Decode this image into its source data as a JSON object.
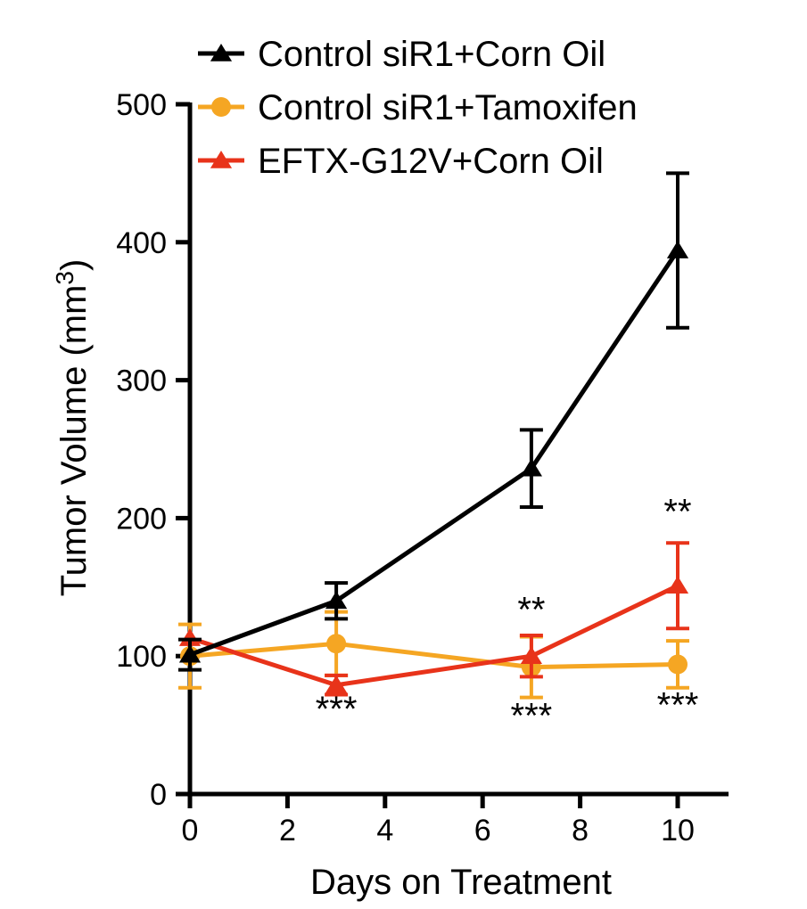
{
  "chart_data": {
    "type": "line",
    "title": "",
    "xlabel": "Days on Treatment",
    "ylabel": "Tumor Volume (mm",
    "ylabel_sup": "3",
    "ylabel_close": ")",
    "xlim": [
      0,
      11
    ],
    "ylim": [
      0,
      500
    ],
    "x_ticks": [
      0,
      2,
      4,
      6,
      8,
      10
    ],
    "y_ticks": [
      0,
      100,
      200,
      300,
      400,
      500
    ],
    "grid": false,
    "legend": "top",
    "series": [
      {
        "name": "Control siR1+Corn Oil",
        "color": "#000000",
        "marker": "triangle",
        "points": [
          {
            "x": 0,
            "y": 101,
            "err": 11
          },
          {
            "x": 3,
            "y": 140,
            "err": 13
          },
          {
            "x": 7,
            "y": 236,
            "err": 28
          },
          {
            "x": 10,
            "y": 394,
            "err": 56
          }
        ]
      },
      {
        "name": "Control siR1+Tamoxifen",
        "color": "#f5a623",
        "marker": "circle",
        "points": [
          {
            "x": 0,
            "y": 100,
            "err": 23
          },
          {
            "x": 3,
            "y": 109,
            "err": 23
          },
          {
            "x": 7,
            "y": 92,
            "err": 22
          },
          {
            "x": 10,
            "y": 94,
            "err": 17
          }
        ]
      },
      {
        "name": "EFTX-G12V+Corn Oil",
        "color": "#e8331a",
        "marker": "triangle",
        "points": [
          {
            "x": 0,
            "y": 113,
            "err": 0
          },
          {
            "x": 3,
            "y": 79,
            "err": 7
          },
          {
            "x": 7,
            "y": 100,
            "err": 15
          },
          {
            "x": 10,
            "y": 151,
            "err": 31
          }
        ]
      }
    ],
    "annotations": [
      {
        "text": "***",
        "x": 3,
        "y": 53
      },
      {
        "text": "**",
        "x": 7,
        "y": 125
      },
      {
        "text": "***",
        "x": 7,
        "y": 48
      },
      {
        "text": "**",
        "x": 10,
        "y": 196
      },
      {
        "text": "***",
        "x": 10,
        "y": 56
      }
    ]
  }
}
